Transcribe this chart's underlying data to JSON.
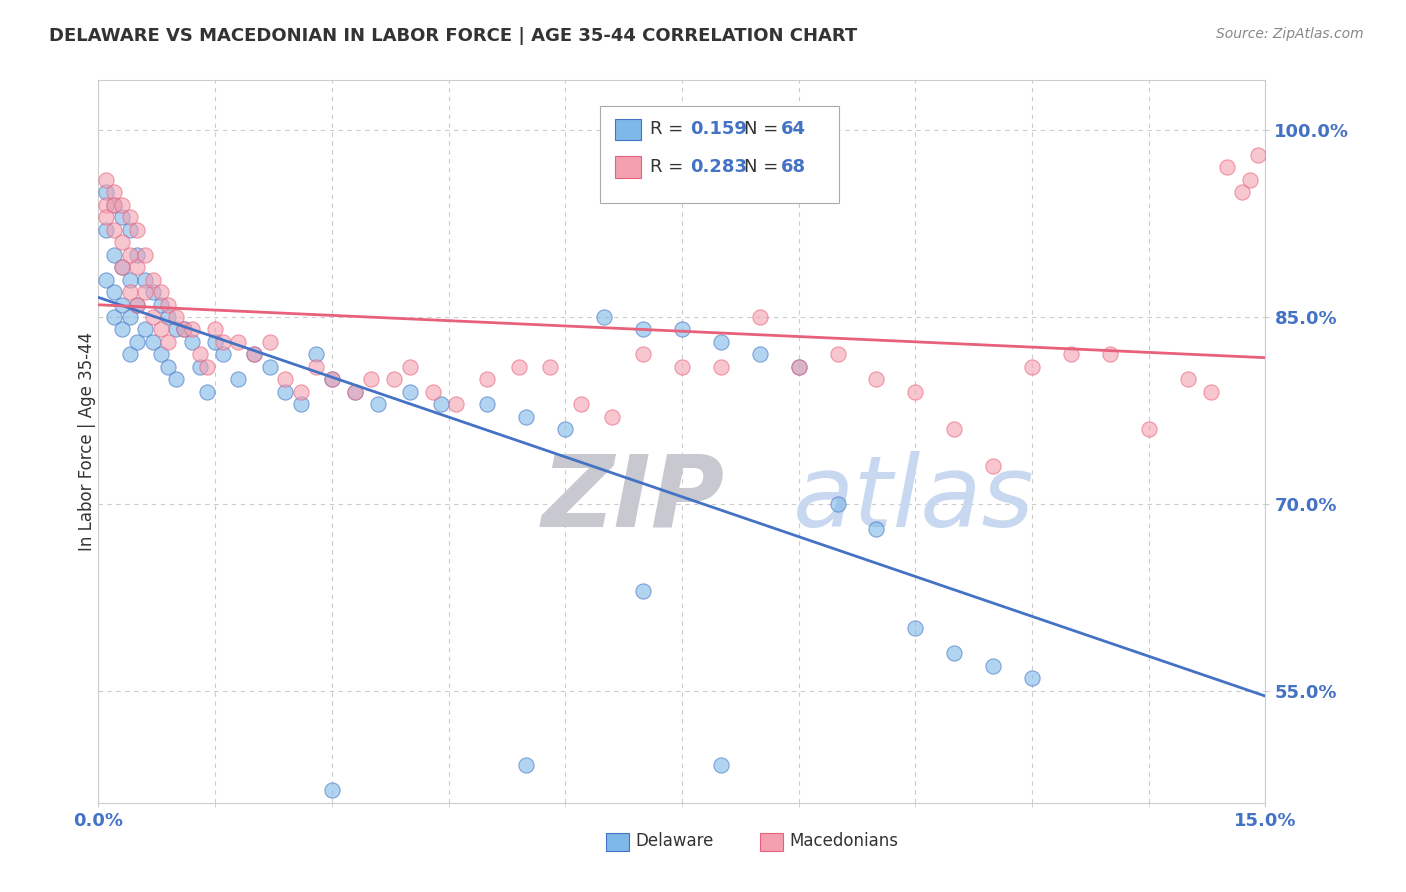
{
  "title": "DELAWARE VS MACEDONIAN IN LABOR FORCE | AGE 35-44 CORRELATION CHART",
  "source_text": "Source: ZipAtlas.com",
  "ylabel": "In Labor Force | Age 35-44",
  "xlim": [
    0.0,
    0.15
  ],
  "ylim": [
    0.46,
    1.04
  ],
  "ytick_positions": [
    0.55,
    0.7,
    0.85,
    1.0
  ],
  "yticklabels": [
    "55.0%",
    "70.0%",
    "85.0%",
    "100.0%"
  ],
  "color_delaware": "#7EB8E8",
  "color_macedonian": "#F4A0B0",
  "color_line_delaware": "#4472C4",
  "color_line_macedonian": "#E8607A",
  "watermark_zip_color": "#C8C8D0",
  "watermark_atlas_color": "#C8D8F0",
  "background_color": "#FFFFFF",
  "grid_color": "#CCCCCC",
  "tick_label_color": "#4472C4",
  "title_color": "#333333",
  "source_color": "#888888",
  "ylabel_color": "#333333"
}
